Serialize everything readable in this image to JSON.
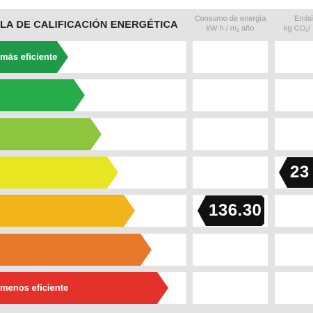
{
  "header": {
    "title": "LA DE CALIFICACIÓN ENERGÉTICA",
    "consumption_line1": "Consumo de energía",
    "consumption_line2_a": "kW h / m",
    "consumption_line2_sub": "2",
    "consumption_line2_b": " año",
    "emissions_line1": "Emisi",
    "emissions_line2_a": "kg CO",
    "emissions_line2_sub": "2",
    "emissions_line2_b": "/"
  },
  "bands": [
    {
      "color": "#1f9a4b",
      "label": "más eficiente"
    },
    {
      "color": "#28ab4b",
      "label": ""
    },
    {
      "color": "#8dc53f",
      "label": ""
    },
    {
      "color": "#e8e521",
      "label": ""
    },
    {
      "color": "#f2b519",
      "label": ""
    },
    {
      "color": "#e8782a",
      "label": ""
    },
    {
      "color": "#e4322b",
      "label": "menos eficiente"
    }
  ],
  "consumption": {
    "value": "136.30",
    "band_index": 4
  },
  "emissions": {
    "value": "23",
    "band_index": 3
  }
}
